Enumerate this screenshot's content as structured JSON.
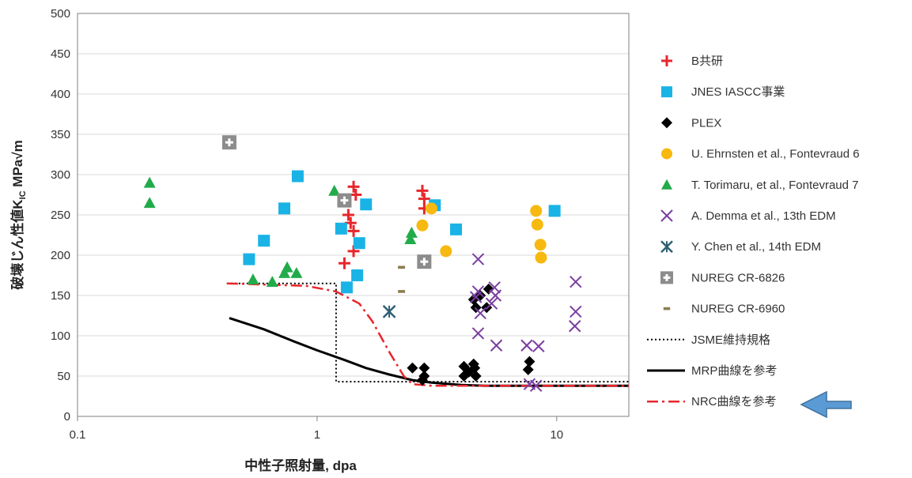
{
  "chart_data": {
    "type": "scatter",
    "title": "",
    "xlabel": "中性子照射量, dpa",
    "ylabel_prefix": "破壊じん性値K",
    "ylabel_sub": "IC",
    "ylabel_suffix": " MPa√m",
    "x_scale": "log",
    "xlim": [
      0.1,
      20
    ],
    "ylim": [
      0,
      500
    ],
    "x_ticks": [
      0.1,
      1,
      10
    ],
    "x_tick_labels": [
      "0.1",
      "1",
      "10"
    ],
    "y_ticks": [
      0,
      50,
      100,
      150,
      200,
      250,
      300,
      350,
      400,
      450,
      500
    ],
    "y_tick_labels": [
      "0",
      "50",
      "100",
      "150",
      "200",
      "250",
      "300",
      "350",
      "400",
      "450",
      "500"
    ],
    "grid": "horizontal",
    "legend_position": "right",
    "series": [
      {
        "name": "B共研",
        "marker": "plus",
        "color": "#e8262c",
        "points": [
          [
            1.3,
            190
          ],
          [
            1.35,
            250
          ],
          [
            1.38,
            240
          ],
          [
            1.42,
            230
          ],
          [
            1.42,
            285
          ],
          [
            1.45,
            275
          ],
          [
            1.42,
            205
          ],
          [
            2.75,
            280
          ],
          [
            2.8,
            270
          ],
          [
            2.8,
            258
          ]
        ]
      },
      {
        "name": "JNES IASCC事業",
        "marker": "square",
        "color": "#1ab3e6",
        "points": [
          [
            0.52,
            195
          ],
          [
            0.6,
            218
          ],
          [
            0.73,
            258
          ],
          [
            0.83,
            298
          ],
          [
            1.26,
            233
          ],
          [
            1.33,
            160
          ],
          [
            1.47,
            175
          ],
          [
            1.5,
            215
          ],
          [
            1.6,
            263
          ],
          [
            3.1,
            262
          ],
          [
            3.8,
            232
          ],
          [
            9.8,
            255
          ]
        ]
      },
      {
        "name": "PLEX",
        "marker": "diamond",
        "color": "#000000",
        "points": [
          [
            2.5,
            60
          ],
          [
            2.75,
            45
          ],
          [
            2.8,
            50
          ],
          [
            2.8,
            60
          ],
          [
            4.1,
            50
          ],
          [
            4.1,
            62
          ],
          [
            4.3,
            55
          ],
          [
            4.5,
            65
          ],
          [
            4.55,
            60
          ],
          [
            4.6,
            50
          ],
          [
            4.5,
            145
          ],
          [
            4.6,
            135
          ],
          [
            4.8,
            150
          ],
          [
            5.1,
            135
          ],
          [
            5.2,
            158
          ],
          [
            7.6,
            58
          ],
          [
            7.7,
            68
          ]
        ]
      },
      {
        "name": "U. Ehrnsten et al., Fontevraud 6",
        "marker": "circle",
        "color": "#f7b90f",
        "points": [
          [
            2.75,
            237
          ],
          [
            3.0,
            258
          ],
          [
            3.45,
            205
          ],
          [
            8.2,
            255
          ],
          [
            8.3,
            238
          ],
          [
            8.55,
            213
          ],
          [
            8.6,
            197
          ]
        ]
      },
      {
        "name": "T. Torimaru, et al., Fontevraud 7",
        "marker": "triangle",
        "color": "#22ab4a",
        "points": [
          [
            0.2,
            290
          ],
          [
            0.2,
            265
          ],
          [
            0.54,
            170
          ],
          [
            0.65,
            167
          ],
          [
            0.73,
            178
          ],
          [
            0.75,
            185
          ],
          [
            0.82,
            178
          ],
          [
            1.18,
            280
          ],
          [
            2.45,
            220
          ],
          [
            2.48,
            228
          ]
        ]
      },
      {
        "name": "A. Demma et al., 13th EDM",
        "marker": "x",
        "color": "#7a3ea1",
        "points": [
          [
            4.6,
            148
          ],
          [
            4.7,
            155
          ],
          [
            4.7,
            195
          ],
          [
            4.7,
            103
          ],
          [
            4.8,
            128
          ],
          [
            5.35,
            140
          ],
          [
            5.5,
            160
          ],
          [
            5.55,
            150
          ],
          [
            5.6,
            88
          ],
          [
            7.5,
            88
          ],
          [
            8.4,
            87
          ],
          [
            7.7,
            40
          ],
          [
            8.2,
            38
          ],
          [
            12,
            167
          ],
          [
            12,
            130
          ],
          [
            11.9,
            112
          ]
        ]
      },
      {
        "name": "Y. Chen et al., 14th EDM",
        "marker": "asterisk",
        "color": "#2f5f73",
        "points": [
          [
            2.0,
            130
          ]
        ]
      },
      {
        "name": "NUREG CR-6826",
        "marker": "boxplus",
        "color": "#8c8c8c",
        "points": [
          [
            0.43,
            340
          ],
          [
            1.3,
            268
          ],
          [
            2.8,
            192
          ]
        ]
      },
      {
        "name": "NUREG CR-6960",
        "marker": "dash",
        "color": "#8b7d4f",
        "points": [
          [
            2.25,
            185
          ],
          [
            2.25,
            155
          ]
        ]
      }
    ],
    "lines": [
      {
        "name": "JSME維持規格",
        "style": "dotted",
        "color": "#000000",
        "points": [
          [
            0.42,
            165
          ],
          [
            1.2,
            165
          ],
          [
            1.2,
            43
          ],
          [
            20,
            43
          ]
        ]
      },
      {
        "name": "MRP曲線を参考",
        "style": "solid",
        "color": "#000000",
        "points": [
          [
            0.43,
            122
          ],
          [
            0.6,
            108
          ],
          [
            0.8,
            93
          ],
          [
            1.0,
            82
          ],
          [
            1.3,
            70
          ],
          [
            1.6,
            60
          ],
          [
            2.0,
            52
          ],
          [
            2.5,
            45
          ],
          [
            3.0,
            42
          ],
          [
            4.0,
            39
          ],
          [
            5.0,
            38
          ],
          [
            20,
            38
          ]
        ]
      },
      {
        "name": "NRC曲線を参考",
        "style": "dashdot",
        "color": "#e8262c",
        "points": [
          [
            0.42,
            165
          ],
          [
            0.9,
            162
          ],
          [
            1.2,
            155
          ],
          [
            1.5,
            140
          ],
          [
            1.7,
            118
          ],
          [
            2.0,
            80
          ],
          [
            2.3,
            50
          ],
          [
            2.5,
            40
          ],
          [
            3.0,
            38
          ],
          [
            20,
            38
          ]
        ]
      }
    ]
  }
}
